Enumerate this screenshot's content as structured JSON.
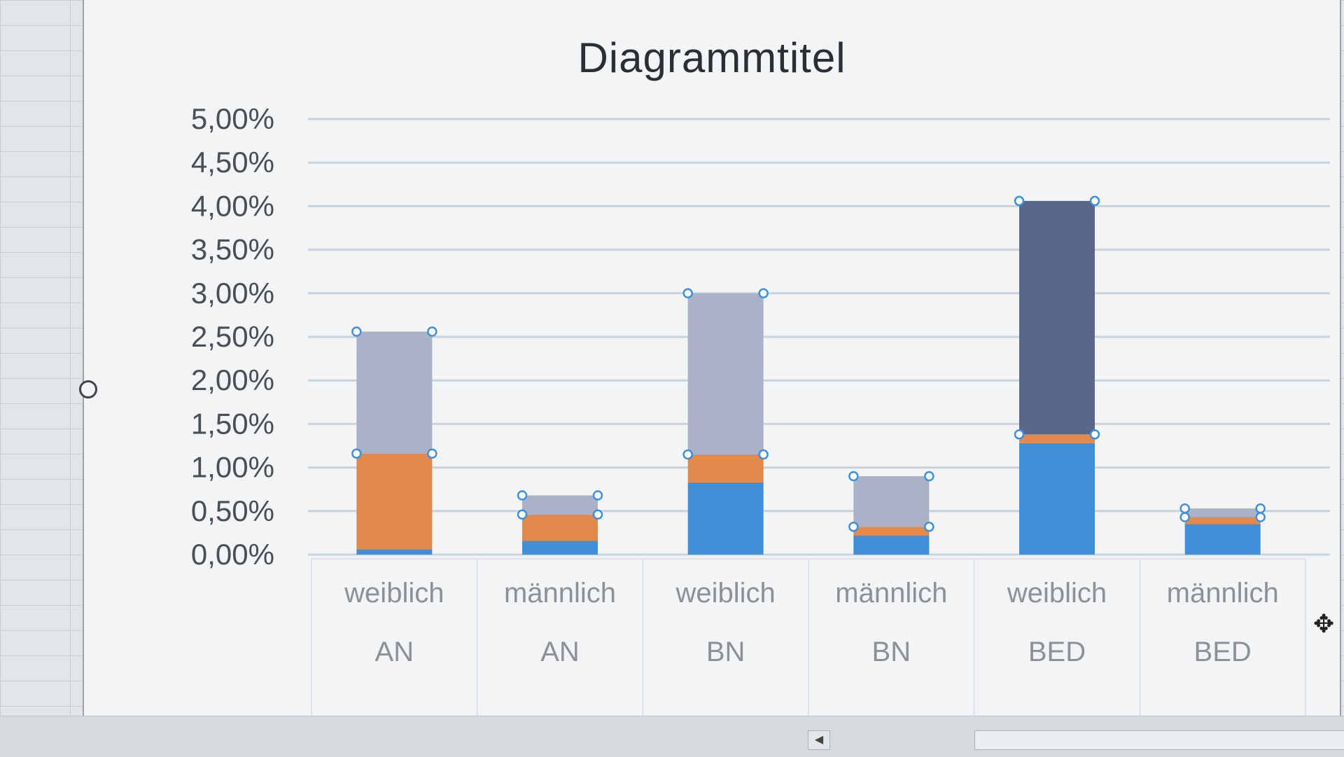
{
  "chart_data": {
    "type": "bar",
    "stacked": true,
    "title": "Diagrammtitel",
    "categories": [
      {
        "label": "weiblich",
        "group": "AN"
      },
      {
        "label": "männlich",
        "group": "AN"
      },
      {
        "label": "weiblich",
        "group": "BN"
      },
      {
        "label": "männlich",
        "group": "BN"
      },
      {
        "label": "weiblich",
        "group": "BED"
      },
      {
        "label": "männlich",
        "group": "BED"
      }
    ],
    "series": [
      {
        "values": [
          0.0006,
          0.0016,
          0.0083,
          0.0022,
          0.0128,
          0.0035
        ]
      },
      {
        "values": [
          0.011,
          0.003,
          0.0032,
          0.001,
          0.001,
          0.0008
        ]
      },
      {
        "values": [
          0.014,
          0.0022,
          0.0185,
          0.0058,
          0.0268,
          0.001
        ]
      }
    ],
    "ylim": [
      0,
      0.05
    ],
    "yticks": [
      0,
      0.005,
      0.01,
      0.015,
      0.02,
      0.025,
      0.03,
      0.035,
      0.04,
      0.045,
      0.05
    ],
    "ytick_labels": [
      "0,00%",
      "0,50%",
      "1,00%",
      "1,50%",
      "2,00%",
      "2,50%",
      "3,00%",
      "3,50%",
      "4,00%",
      "4,50%",
      "5,00%"
    ],
    "grid": true,
    "legend": "none",
    "colors": {
      "series": [
        "#3f8fdb",
        "#e28a4c",
        "#a9b2c6"
      ],
      "series_last_bar": "#5a6789",
      "grid": "#c8d3de",
      "axis_text": "#4a4f55",
      "category_text": "#8c9196",
      "handles": "#3f8fdb"
    }
  }
}
